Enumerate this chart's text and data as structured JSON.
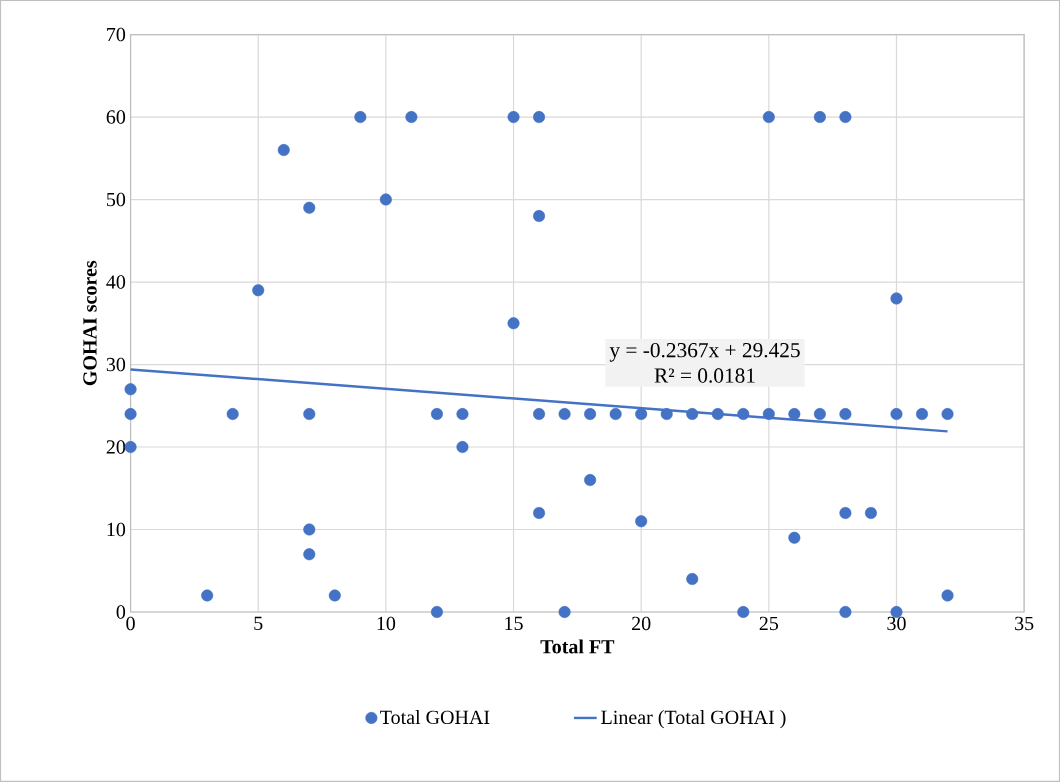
{
  "chart_data": {
    "type": "scatter",
    "xlabel": "Total FT",
    "ylabel": "GOHAI scores",
    "xlim": [
      0,
      35
    ],
    "xticks": [
      0,
      5,
      10,
      15,
      20,
      25,
      30,
      35
    ],
    "ylim": [
      0,
      70
    ],
    "yticks": [
      0,
      10,
      20,
      30,
      40,
      50,
      60,
      70
    ],
    "grid": true,
    "legend": "bottom",
    "marker": "circle",
    "annotations": [
      "y = -0.2367x + 29.425",
      "R² = 0.0181"
    ],
    "series": [
      {
        "name": "Total GOHAI",
        "color": "#4472c4",
        "x": [
          0,
          0,
          0,
          3,
          4,
          5,
          6,
          7,
          7,
          7,
          7,
          8,
          9,
          10,
          11,
          12,
          12,
          13,
          13,
          15,
          15,
          16,
          16,
          16,
          16,
          17,
          17,
          18,
          18,
          19,
          20,
          20,
          21,
          22,
          22,
          23,
          24,
          24,
          25,
          25,
          26,
          26,
          27,
          27,
          28,
          28,
          28,
          28,
          29,
          30,
          30,
          30,
          31,
          32,
          32
        ],
        "values": [
          27,
          24,
          20,
          2,
          24,
          39,
          56,
          49,
          24,
          10,
          7,
          2,
          60,
          50,
          60,
          24,
          0,
          24,
          20,
          60,
          35,
          60,
          48,
          24,
          12,
          24,
          0,
          24,
          16,
          24,
          24,
          11,
          24,
          24,
          4,
          24,
          24,
          0,
          60,
          24,
          24,
          9,
          60,
          24,
          60,
          24,
          12,
          0,
          12,
          38,
          24,
          0,
          24,
          24,
          2
        ]
      },
      {
        "name": "Linear (Total GOHAI )",
        "type": "line",
        "color": "#4472c4",
        "line_style": "solid",
        "marker": "none",
        "x": [
          0,
          32
        ],
        "values": [
          29.4,
          21.9
        ]
      }
    ]
  }
}
